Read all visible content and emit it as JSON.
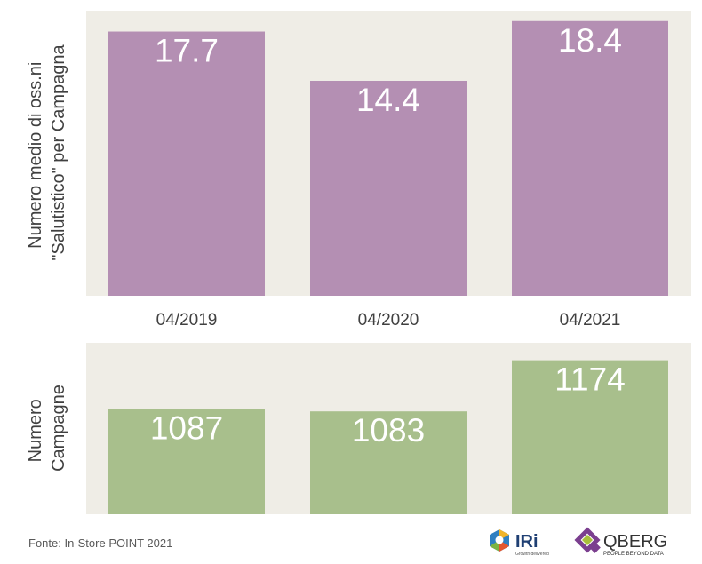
{
  "chart_data": [
    {
      "type": "bar",
      "categories": [
        "04/2019",
        "04/2020",
        "04/2021"
      ],
      "values": [
        17.7,
        14.4,
        18.4
      ],
      "ylabel_lines": [
        "Numero medio di oss.ni",
        "\"Salutistico\" per Campagna"
      ],
      "ylim": [
        0,
        19.1
      ],
      "grid": false,
      "colors": {
        "bar": "#b48fb3",
        "background": "#efede6"
      }
    },
    {
      "type": "bar",
      "categories": [
        "04/2019",
        "04/2020",
        "04/2021"
      ],
      "values": [
        1087,
        1083,
        1174
      ],
      "ylabel_lines": [
        "Numero",
        "Campagne"
      ],
      "ylim": [
        900,
        1205
      ],
      "grid": false,
      "colors": {
        "bar": "#a8bf8c",
        "background": "#efede6"
      }
    }
  ],
  "source": "Fonte: In-Store POINT 2021",
  "logos": {
    "iri": {
      "name": "IRi",
      "tagline": "Growth delivered",
      "icon": "iri-logo-icon"
    },
    "qberg": {
      "name": "QBERG",
      "tagline": "PEOPLE BEYOND DATA",
      "icon": "qberg-logo-icon"
    }
  }
}
